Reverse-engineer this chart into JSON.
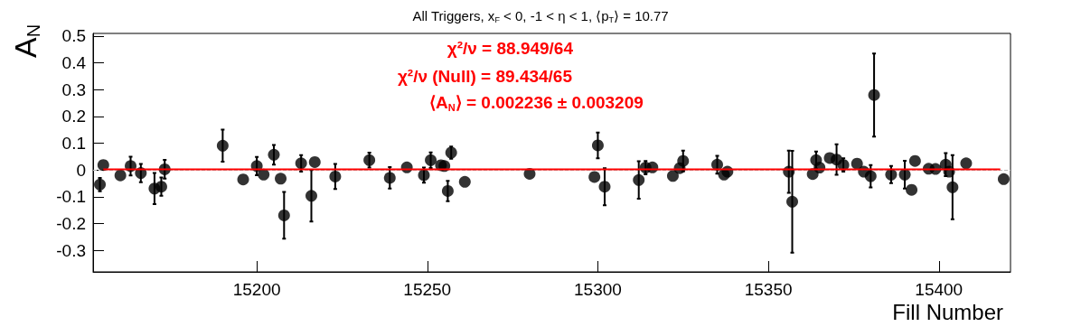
{
  "chart_data": {
    "type": "scatter",
    "title": "All Triggers, x$_{F}$ < 0, -1 < η < 1, ⟨p$_{T}$⟩ = 10.77",
    "xlabel": "Fill Number",
    "ylabel": "A$_{N}$",
    "annotations": [
      "χ²/ν = 88.949/64",
      "χ²/ν (Null) = 89.434/65",
      "⟨A$_{N}$⟩ = 0.002236 ± 0.003209"
    ],
    "xlim": [
      15152,
      15421
    ],
    "xticks": [
      15200,
      15250,
      15300,
      15350,
      15400
    ],
    "ylim": [
      -0.38,
      0.51
    ],
    "yticks": [
      -0.3,
      -0.2,
      -0.1,
      0,
      0.1,
      0.2,
      0.3,
      0.4,
      0.5
    ],
    "grid": false,
    "marker": "circle",
    "ref_lines": [
      {
        "axis": "y",
        "value": 0,
        "color": "#bbbbbb",
        "line_style": "dashed"
      }
    ],
    "series": [
      {
        "color": "#000000",
        "x": [
          15154,
          15155,
          15160,
          15163,
          15166,
          15170,
          15172,
          15173,
          15190,
          15196,
          15200,
          15202,
          15205,
          15207,
          15208,
          15213,
          15216,
          15217,
          15223,
          15233,
          15239,
          15244,
          15249,
          15251,
          15254,
          15255,
          15256,
          15257,
          15261,
          15280,
          15299,
          15300,
          15302,
          15312,
          15314,
          15316,
          15322,
          15324,
          15325,
          15335,
          15337,
          15338,
          15356,
          15357,
          15363,
          15364,
          15365,
          15368,
          15370,
          15372,
          15376,
          15378,
          15380,
          15381,
          15386,
          15390,
          15392,
          15393,
          15397,
          15399,
          15402,
          15403,
          15404,
          15408,
          15419
        ],
        "values": [
          -0.054,
          0.019,
          -0.02,
          0.015,
          -0.011,
          -0.069,
          -0.062,
          0.003,
          0.091,
          -0.035,
          0.015,
          -0.017,
          0.057,
          -0.032,
          -0.169,
          0.025,
          -0.096,
          0.03,
          -0.024,
          0.037,
          -0.029,
          0.01,
          -0.019,
          0.037,
          0.018,
          0.015,
          -0.078,
          0.065,
          -0.044,
          -0.014,
          -0.026,
          0.092,
          -0.062,
          -0.037,
          0.009,
          0.01,
          -0.022,
          0.007,
          0.034,
          0.02,
          -0.017,
          -0.006,
          -0.006,
          -0.118,
          -0.015,
          0.037,
          0.009,
          0.045,
          0.039,
          0.019,
          0.024,
          -0.006,
          -0.023,
          0.28,
          -0.017,
          -0.017,
          -0.074,
          0.034,
          0.005,
          0.004,
          0.02,
          -0.006,
          -0.064,
          0.025,
          -0.034
        ],
        "errors": [
          0.025,
          null,
          null,
          0.035,
          0.034,
          0.058,
          0.034,
          0.035,
          0.06,
          null,
          0.034,
          null,
          0.037,
          null,
          0.087,
          0.031,
          0.096,
          null,
          0.047,
          0.028,
          0.04,
          null,
          0.028,
          0.029,
          null,
          null,
          0.038,
          0.023,
          null,
          null,
          null,
          0.048,
          0.069,
          0.07,
          0.025,
          null,
          null,
          null,
          0.039,
          0.033,
          null,
          null,
          0.079,
          0.19,
          null,
          0.032,
          null,
          null,
          0.057,
          0.025,
          null,
          null,
          0.042,
          0.155,
          0.032,
          0.052,
          null,
          null,
          null,
          null,
          0.043,
          null,
          0.12,
          null,
          null
        ]
      },
      {
        "type": "line",
        "color": "#ff0000",
        "marker": "none",
        "line_style": "solid",
        "x": [
          15155,
          15418
        ],
        "values": [
          0.002236,
          0.002236
        ]
      }
    ]
  }
}
